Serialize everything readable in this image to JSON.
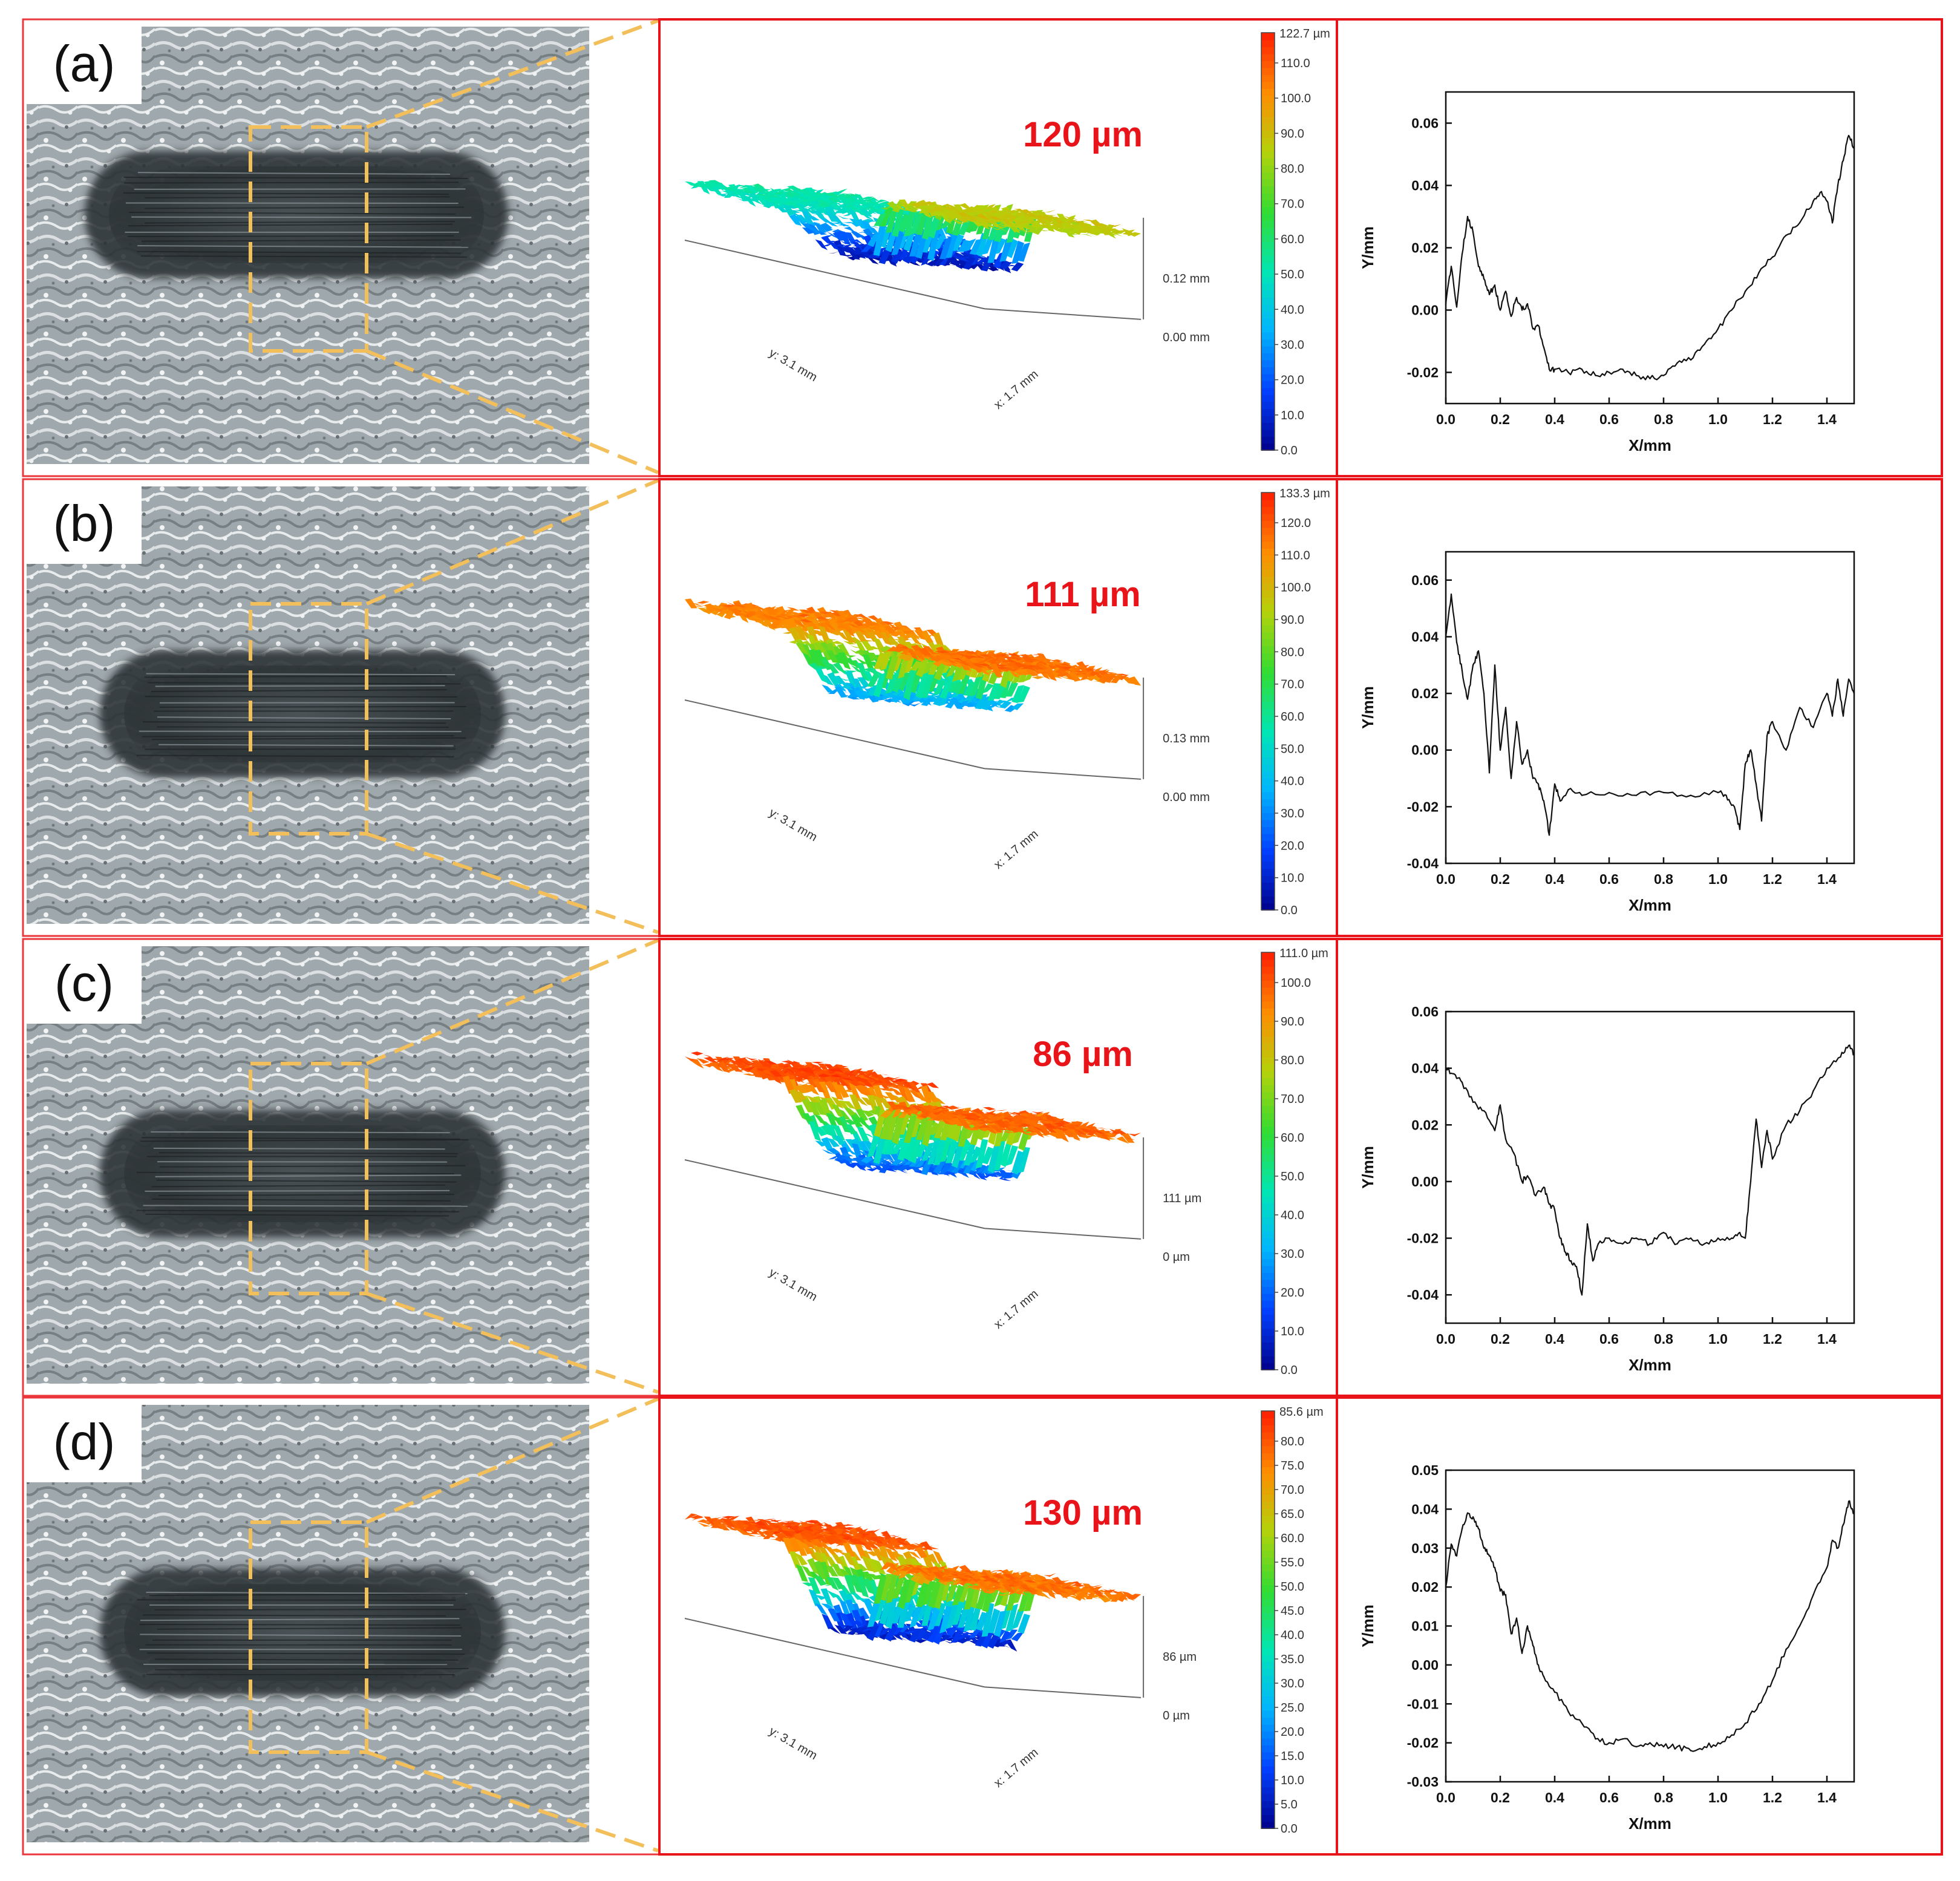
{
  "figure": {
    "colorscale": [
      "#00008b",
      "#0040ff",
      "#00b4ff",
      "#00e6b4",
      "#32dc32",
      "#b4d20a",
      "#ff8c00",
      "#ff1e00"
    ],
    "dash_color": "#f2bf5a",
    "border_color": "#e8141a",
    "rows": [
      {
        "id": "a",
        "label": "(a)",
        "depth_label": "120 µm",
        "surface": {
          "z_high_label": "0.12 mm",
          "z_low_label": "0.00 mm",
          "y_label": "y: 3.1 mm",
          "x_label": "x: 1.7 mm",
          "left_level": 0.42,
          "right_level": 0.72,
          "groove_level": 0.06
        },
        "colorbar": {
          "max_label": "122.7 µm",
          "ticks": [
            "110.0",
            "100.0",
            "90.0",
            "80.0",
            "70.0",
            "60.0",
            "50.0",
            "40.0",
            "30.0",
            "20.0",
            "10.0",
            "0.0"
          ]
        },
        "chart_data": {
          "type": "line",
          "title": "",
          "xlabel": "X/mm",
          "ylabel": "Y/mm",
          "xlim": [
            0,
            1.5
          ],
          "ylim": [
            -0.03,
            0.07
          ],
          "xticks": [
            "0.0",
            "0.2",
            "0.4",
            "0.6",
            "0.8",
            "1.0",
            "1.2",
            "1.4"
          ],
          "yticks": [
            "-0.02",
            "0.00",
            "0.02",
            "0.04",
            "0.06"
          ],
          "x": [
            0.0,
            0.02,
            0.04,
            0.06,
            0.08,
            0.1,
            0.12,
            0.14,
            0.16,
            0.18,
            0.2,
            0.22,
            0.24,
            0.26,
            0.28,
            0.3,
            0.32,
            0.34,
            0.36,
            0.38,
            0.4,
            0.45,
            0.5,
            0.55,
            0.6,
            0.65,
            0.7,
            0.75,
            0.8,
            0.85,
            0.9,
            0.95,
            1.0,
            1.05,
            1.1,
            1.15,
            1.2,
            1.25,
            1.3,
            1.35,
            1.38,
            1.4,
            1.42,
            1.44,
            1.46,
            1.48,
            1.5
          ],
          "y": [
            0.002,
            0.014,
            0.001,
            0.018,
            0.03,
            0.025,
            0.014,
            0.01,
            0.005,
            0.008,
            0.0,
            0.006,
            -0.002,
            0.004,
            0.0,
            0.002,
            -0.006,
            -0.005,
            -0.012,
            -0.019,
            -0.019,
            -0.02,
            -0.019,
            -0.021,
            -0.02,
            -0.019,
            -0.021,
            -0.022,
            -0.021,
            -0.017,
            -0.016,
            -0.011,
            -0.006,
            0.0,
            0.006,
            0.012,
            0.017,
            0.024,
            0.028,
            0.035,
            0.038,
            0.035,
            0.028,
            0.04,
            0.048,
            0.056,
            0.052
          ]
        }
      },
      {
        "id": "b",
        "label": "(b)",
        "depth_label": "111 µm",
        "surface": {
          "z_high_label": "0.13 mm",
          "z_low_label": "0.00 mm",
          "y_label": "y: 3.1 mm",
          "x_label": "x: 1.7 mm",
          "left_level": 0.86,
          "right_level": 0.88,
          "groove_level": 0.28
        },
        "colorbar": {
          "max_label": "133.3 µm",
          "ticks": [
            "120.0",
            "110.0",
            "100.0",
            "90.0",
            "80.0",
            "70.0",
            "60.0",
            "50.0",
            "40.0",
            "30.0",
            "20.0",
            "10.0",
            "0.0"
          ]
        },
        "chart_data": {
          "type": "line",
          "title": "",
          "xlabel": "X/mm",
          "ylabel": "Y/mm",
          "xlim": [
            0,
            1.5
          ],
          "ylim": [
            -0.04,
            0.07
          ],
          "xticks": [
            "0.0",
            "0.2",
            "0.4",
            "0.6",
            "0.8",
            "1.0",
            "1.2",
            "1.4"
          ],
          "yticks": [
            "-0.04",
            "-0.02",
            "0.00",
            "0.02",
            "0.04",
            "0.06"
          ],
          "x": [
            0.0,
            0.02,
            0.04,
            0.06,
            0.08,
            0.1,
            0.12,
            0.14,
            0.16,
            0.18,
            0.2,
            0.22,
            0.24,
            0.26,
            0.28,
            0.3,
            0.32,
            0.34,
            0.36,
            0.38,
            0.4,
            0.42,
            0.45,
            0.5,
            0.6,
            0.7,
            0.8,
            0.9,
            1.0,
            1.03,
            1.06,
            1.08,
            1.1,
            1.12,
            1.14,
            1.16,
            1.18,
            1.2,
            1.25,
            1.3,
            1.35,
            1.4,
            1.42,
            1.44,
            1.46,
            1.48,
            1.5
          ],
          "y": [
            0.04,
            0.055,
            0.038,
            0.028,
            0.018,
            0.03,
            0.035,
            0.02,
            -0.008,
            0.03,
            0.0,
            0.015,
            -0.01,
            0.01,
            -0.005,
            0.0,
            -0.01,
            -0.012,
            -0.018,
            -0.03,
            -0.012,
            -0.018,
            -0.014,
            -0.016,
            -0.015,
            -0.016,
            -0.015,
            -0.016,
            -0.015,
            -0.016,
            -0.02,
            -0.028,
            -0.005,
            0.0,
            -0.012,
            -0.025,
            0.005,
            0.01,
            0.0,
            0.015,
            0.008,
            0.02,
            0.012,
            0.025,
            0.012,
            0.025,
            0.02
          ]
        }
      },
      {
        "id": "c",
        "label": "(c)",
        "depth_label": "86 µm",
        "surface": {
          "z_high_label": "111 µm",
          "z_low_label": "0 µm",
          "y_label": "y: 3.1 mm",
          "x_label": "x: 1.7 mm",
          "left_level": 0.93,
          "right_level": 0.9,
          "groove_level": 0.18
        },
        "colorbar": {
          "max_label": "111.0 µm",
          "ticks": [
            "100.0",
            "90.0",
            "80.0",
            "70.0",
            "60.0",
            "50.0",
            "40.0",
            "30.0",
            "20.0",
            "10.0",
            "0.0"
          ]
        },
        "chart_data": {
          "type": "line",
          "title": "",
          "xlabel": "X/mm",
          "ylabel": "Y/mm",
          "xlim": [
            0,
            1.5
          ],
          "ylim": [
            -0.05,
            0.06
          ],
          "xticks": [
            "0.0",
            "0.2",
            "0.4",
            "0.6",
            "0.8",
            "1.0",
            "1.2",
            "1.4"
          ],
          "yticks": [
            "-0.04",
            "-0.02",
            "0.00",
            "0.02",
            "0.04",
            "0.06"
          ],
          "x": [
            0.0,
            0.03,
            0.06,
            0.1,
            0.14,
            0.18,
            0.2,
            0.22,
            0.25,
            0.28,
            0.3,
            0.33,
            0.36,
            0.38,
            0.4,
            0.42,
            0.44,
            0.46,
            0.48,
            0.5,
            0.52,
            0.54,
            0.56,
            0.6,
            0.65,
            0.7,
            0.75,
            0.8,
            0.85,
            0.9,
            0.95,
            1.0,
            1.05,
            1.08,
            1.1,
            1.12,
            1.14,
            1.16,
            1.18,
            1.2,
            1.25,
            1.3,
            1.35,
            1.4,
            1.45,
            1.48,
            1.5
          ],
          "y": [
            0.04,
            0.038,
            0.035,
            0.028,
            0.025,
            0.018,
            0.027,
            0.015,
            0.01,
            0.0,
            0.002,
            -0.005,
            -0.002,
            -0.008,
            -0.01,
            -0.02,
            -0.025,
            -0.028,
            -0.03,
            -0.04,
            -0.015,
            -0.028,
            -0.022,
            -0.02,
            -0.022,
            -0.02,
            -0.022,
            -0.018,
            -0.022,
            -0.02,
            -0.022,
            -0.02,
            -0.02,
            -0.018,
            -0.02,
            0.0,
            0.022,
            0.005,
            0.018,
            0.008,
            0.02,
            0.025,
            0.032,
            0.04,
            0.044,
            0.048,
            0.045
          ]
        }
      },
      {
        "id": "d",
        "label": "(d)",
        "depth_label": "130 µm",
        "surface": {
          "z_high_label": "86 µm",
          "z_low_label": "0 µm",
          "y_label": "y: 3.1 mm",
          "x_label": "x: 1.7 mm",
          "left_level": 0.92,
          "right_level": 0.88,
          "groove_level": 0.08
        },
        "colorbar": {
          "max_label": "85.6 µm",
          "ticks": [
            "80.0",
            "75.0",
            "70.0",
            "65.0",
            "60.0",
            "55.0",
            "50.0",
            "45.0",
            "40.0",
            "35.0",
            "30.0",
            "25.0",
            "20.0",
            "15.0",
            "10.0",
            "5.0",
            "0.0"
          ]
        },
        "chart_data": {
          "type": "line",
          "title": "",
          "xlabel": "X/mm",
          "ylabel": "Y/mm",
          "xlim": [
            0,
            1.5
          ],
          "ylim": [
            -0.03,
            0.05
          ],
          "xticks": [
            "0.0",
            "0.2",
            "0.4",
            "0.6",
            "0.8",
            "1.0",
            "1.2",
            "1.4"
          ],
          "yticks": [
            "-0.03",
            "-0.02",
            "-0.01",
            "0.00",
            "0.01",
            "0.02",
            "0.03",
            "0.04",
            "0.05"
          ],
          "x": [
            0.0,
            0.02,
            0.04,
            0.06,
            0.08,
            0.1,
            0.12,
            0.14,
            0.16,
            0.18,
            0.2,
            0.22,
            0.24,
            0.26,
            0.28,
            0.3,
            0.32,
            0.34,
            0.36,
            0.4,
            0.45,
            0.5,
            0.55,
            0.6,
            0.65,
            0.7,
            0.75,
            0.8,
            0.85,
            0.9,
            0.95,
            1.0,
            1.05,
            1.1,
            1.15,
            1.2,
            1.25,
            1.3,
            1.35,
            1.4,
            1.42,
            1.44,
            1.46,
            1.48,
            1.5
          ],
          "y": [
            0.02,
            0.031,
            0.028,
            0.035,
            0.039,
            0.038,
            0.035,
            0.03,
            0.028,
            0.025,
            0.019,
            0.018,
            0.008,
            0.012,
            0.003,
            0.01,
            0.005,
            0.0,
            -0.003,
            -0.007,
            -0.012,
            -0.015,
            -0.019,
            -0.02,
            -0.019,
            -0.021,
            -0.02,
            -0.021,
            -0.021,
            -0.022,
            -0.021,
            -0.02,
            -0.018,
            -0.015,
            -0.01,
            -0.004,
            0.004,
            0.01,
            0.018,
            0.025,
            0.032,
            0.03,
            0.036,
            0.042,
            0.039
          ]
        }
      }
    ]
  }
}
